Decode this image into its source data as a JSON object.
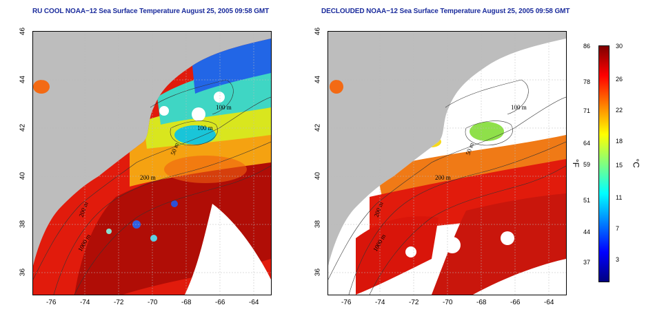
{
  "left_title": "RU COOL NOAA−12 Sea Surface Temperature August 25, 2005 09:58 GMT",
  "right_title": "DECLOUDED NOAA−12 Sea Surface Temperature August 25, 2005 09:58 GMT",
  "x_ticks": [
    "-76",
    "-74",
    "-72",
    "-70",
    "-68",
    "-66",
    "-64"
  ],
  "y_ticks": [
    "46",
    "44",
    "42",
    "40",
    "38",
    "36"
  ],
  "contour_labels": [
    "100 m",
    "100 m",
    "50 m",
    "200 m",
    "200 m",
    "1000 m"
  ],
  "colorbar": {
    "f_unit": "°F",
    "c_unit": "°C",
    "f_labels": [
      "86",
      "78",
      "71",
      "64",
      "59",
      "51",
      "44",
      "37"
    ],
    "c_labels": [
      "30",
      "26",
      "22",
      "18",
      "15",
      "11",
      "7",
      "3"
    ],
    "colors": [
      "#00007f",
      "#0000ff",
      "#0080ff",
      "#00ffff",
      "#80ff80",
      "#ffff00",
      "#ff8000",
      "#ff0000",
      "#7f0000"
    ]
  }
}
